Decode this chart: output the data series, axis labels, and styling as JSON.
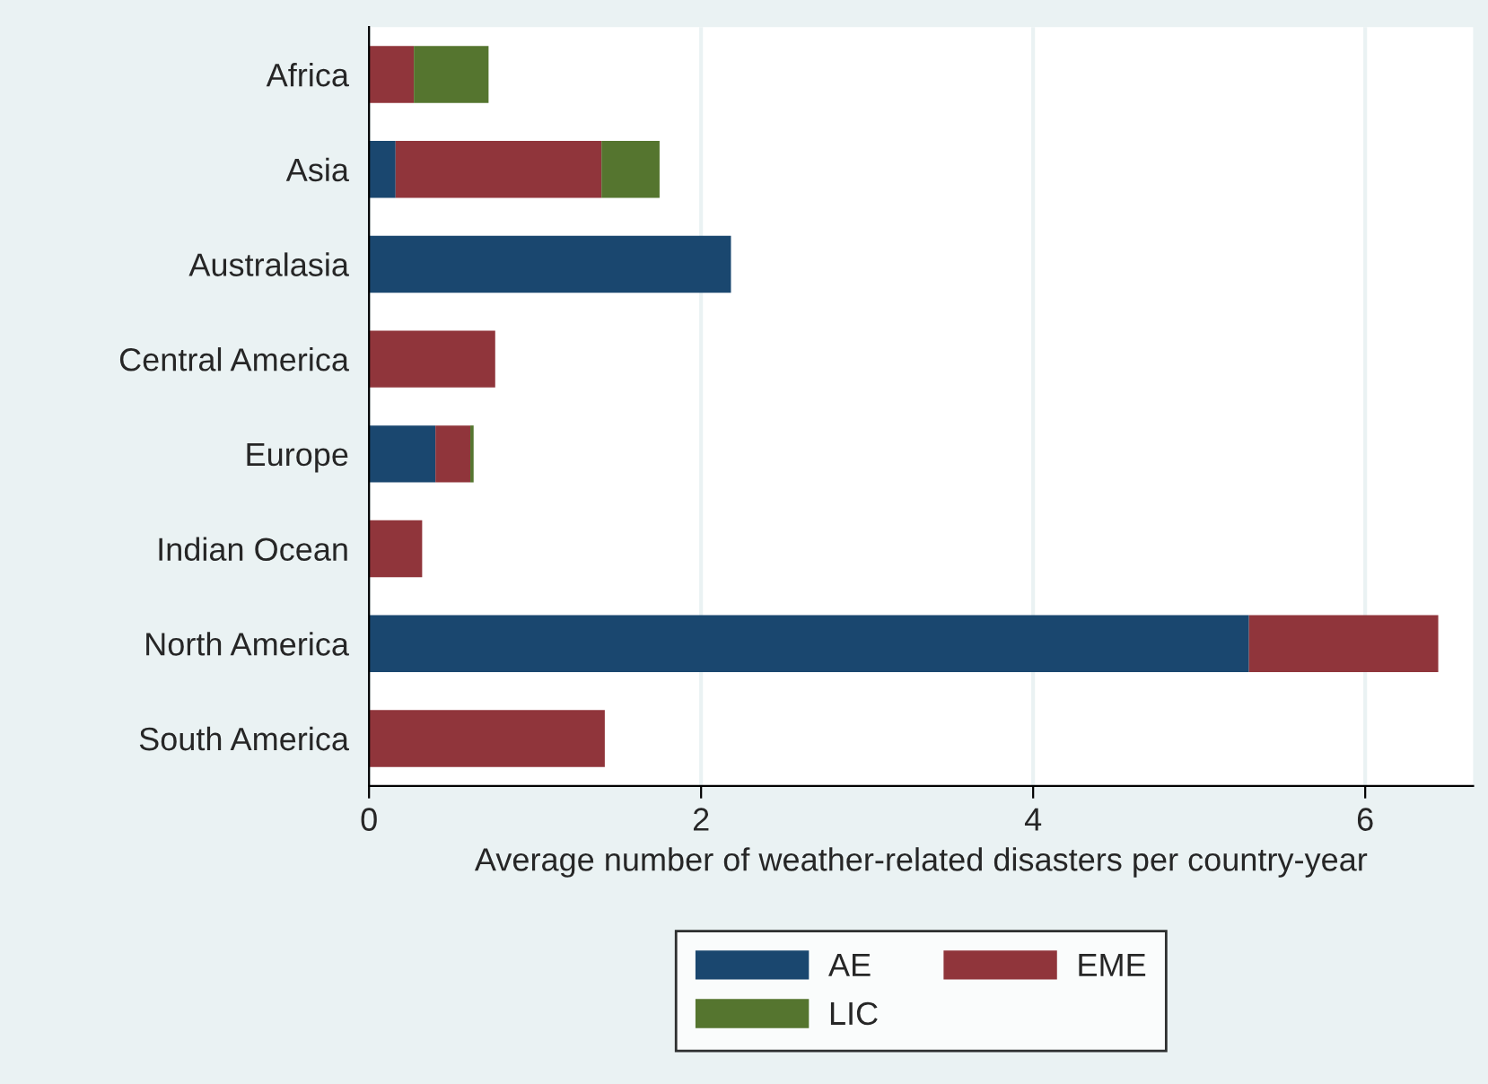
{
  "chart_data": {
    "type": "bar",
    "orientation": "horizontal",
    "stacked": true,
    "xlabel": "Average number of weather-related disasters per country-year",
    "categories": [
      "Africa",
      "Asia",
      "Australasia",
      "Central America",
      "Europe",
      "Indian Ocean",
      "North America",
      "South America"
    ],
    "series": [
      {
        "name": "AE",
        "color": "#1a476f",
        "values": [
          0,
          0.16,
          2.18,
          0,
          0.4,
          0,
          5.3,
          0
        ]
      },
      {
        "name": "EME",
        "color": "#90353b",
        "values": [
          0.27,
          1.24,
          0,
          0.76,
          0.21,
          0.32,
          1.14,
          1.42
        ]
      },
      {
        "name": "LIC",
        "color": "#55752f",
        "values": [
          0.45,
          0.35,
          0,
          0,
          0.02,
          0,
          0,
          0
        ]
      }
    ],
    "xlim": [
      0,
      6.65
    ],
    "xticks": [
      0,
      2,
      4,
      6
    ],
    "grid": "x",
    "legend": "bottom"
  }
}
